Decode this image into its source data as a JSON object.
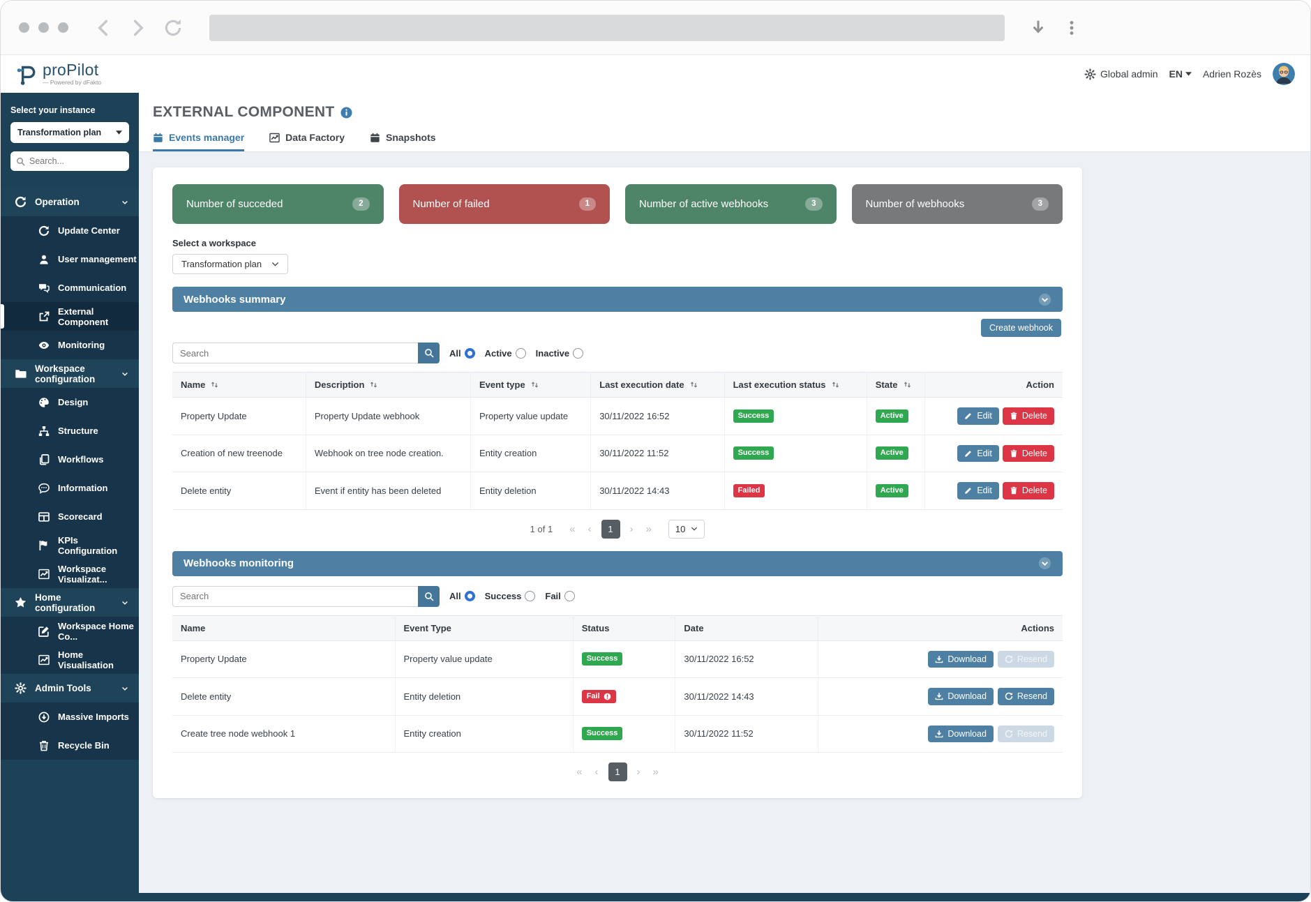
{
  "header": {
    "logo_title": "proPilot",
    "powered_by": "Powered by dFakto",
    "global_admin_label": "Global admin",
    "language": "EN",
    "user_name": "Adrien Rozès"
  },
  "sidebar": {
    "instance_label": "Select your instance",
    "instance_value": "Transformation plan",
    "search_placeholder": "Search...",
    "sections": [
      {
        "label": "Operation",
        "slug": "operation",
        "icon": "refresh",
        "items": [
          {
            "label": "Update Center",
            "slug": "update-center",
            "icon": "refresh"
          },
          {
            "label": "User management",
            "slug": "user-management",
            "icon": "user"
          },
          {
            "label": "Communication",
            "slug": "communication",
            "icon": "chat"
          },
          {
            "label": "External Component",
            "slug": "external-component",
            "icon": "external",
            "active": true
          },
          {
            "label": "Monitoring",
            "slug": "monitoring",
            "icon": "eye"
          }
        ]
      },
      {
        "label": "Workspace configuration",
        "slug": "workspace-configuration",
        "icon": "folder",
        "items": [
          {
            "label": "Design",
            "slug": "design",
            "icon": "palette"
          },
          {
            "label": "Structure",
            "slug": "structure",
            "icon": "sitemap"
          },
          {
            "label": "Workflows",
            "slug": "workflows",
            "icon": "copy"
          },
          {
            "label": "Information",
            "slug": "information",
            "icon": "comment"
          },
          {
            "label": "Scorecard",
            "slug": "scorecard",
            "icon": "table"
          },
          {
            "label": "KPIs Configuration",
            "slug": "kpis-configuration",
            "icon": "flag"
          },
          {
            "label": "Workspace Visualizat...",
            "slug": "workspace-visualization",
            "icon": "chart"
          }
        ]
      },
      {
        "label": "Home configuration",
        "slug": "home-configuration",
        "icon": "star",
        "items": [
          {
            "label": "Workspace Home Co...",
            "slug": "workspace-home-config",
            "icon": "edit"
          },
          {
            "label": "Home Visualisation",
            "slug": "home-visualisation",
            "icon": "chart"
          }
        ]
      },
      {
        "label": "Admin Tools",
        "slug": "admin-tools",
        "icon": "gear",
        "items": [
          {
            "label": "Massive Imports",
            "slug": "massive-imports",
            "icon": "import"
          },
          {
            "label": "Recycle Bin",
            "slug": "recycle-bin",
            "icon": "trash"
          }
        ]
      }
    ]
  },
  "page": {
    "title": "EXTERNAL COMPONENT",
    "tabs": [
      {
        "label": "Events manager",
        "slug": "events-manager",
        "icon": "calendar",
        "active": true
      },
      {
        "label": "Data Factory",
        "slug": "data-factory",
        "icon": "chart",
        "active": false
      },
      {
        "label": "Snapshots",
        "slug": "snapshots",
        "icon": "calendar",
        "active": false
      }
    ]
  },
  "stats": [
    {
      "label": "Number of succeded",
      "slug": "succeeded",
      "value": "2",
      "color": "#4e8468"
    },
    {
      "label": "Number of failed",
      "slug": "failed",
      "value": "1",
      "color": "#b15251"
    },
    {
      "label": "Number of active webhooks",
      "slug": "active-webhooks",
      "value": "3",
      "color": "#4e8468"
    },
    {
      "label": "Number of webhooks",
      "slug": "webhooks",
      "value": "3",
      "color": "#77797b"
    }
  ],
  "workspace": {
    "label": "Select a workspace",
    "value": "Transformation plan"
  },
  "summary": {
    "title": "Webhooks summary",
    "create_button_label": "Create webhook",
    "search_placeholder": "Search",
    "filters": [
      {
        "label": "All",
        "slug": "all",
        "checked": true
      },
      {
        "label": "Active",
        "slug": "active",
        "checked": false
      },
      {
        "label": "Inactive",
        "slug": "inactive",
        "checked": false
      }
    ],
    "columns": [
      {
        "label": "Name",
        "slug": "name",
        "sortable": true
      },
      {
        "label": "Description",
        "slug": "description",
        "sortable": true
      },
      {
        "label": "Event type",
        "slug": "event-type",
        "sortable": true
      },
      {
        "label": "Last execution date",
        "slug": "last-execution-date",
        "sortable": true
      },
      {
        "label": "Last execution status",
        "slug": "last-execution-status",
        "sortable": true
      },
      {
        "label": "State",
        "slug": "state",
        "sortable": true
      },
      {
        "label": "Action",
        "slug": "action",
        "sortable": false
      }
    ],
    "rows": [
      {
        "name": "Property Update",
        "description": "Property Update webhook",
        "event_type": "Property value update",
        "last_execution_date": "30/11/2022 16:52",
        "last_execution_status": "Success",
        "state": "Active"
      },
      {
        "name": "Creation of new treenode",
        "description": "Webhook on tree node creation.",
        "event_type": "Entity creation",
        "last_execution_date": "30/11/2022 11:52",
        "last_execution_status": "Success",
        "state": "Active"
      },
      {
        "name": "Delete entity",
        "description": "Event if entity has been deleted",
        "event_type": "Entity deletion",
        "last_execution_date": "30/11/2022 14:43",
        "last_execution_status": "Failed",
        "state": "Active"
      }
    ],
    "edit_label": "Edit",
    "delete_label": "Delete",
    "pagination": {
      "info": "1 of 1",
      "current_page": "1",
      "page_size": "10"
    }
  },
  "monitoring": {
    "title": "Webhooks monitoring",
    "search_placeholder": "Search",
    "filters": [
      {
        "label": "All",
        "slug": "all",
        "checked": true
      },
      {
        "label": "Success",
        "slug": "success",
        "checked": false
      },
      {
        "label": "Fail",
        "slug": "fail",
        "checked": false
      }
    ],
    "columns": [
      {
        "label": "Name",
        "slug": "name"
      },
      {
        "label": "Event Type",
        "slug": "event-type"
      },
      {
        "label": "Status",
        "slug": "status"
      },
      {
        "label": "Date",
        "slug": "date"
      },
      {
        "label": "Actions",
        "slug": "actions"
      }
    ],
    "rows": [
      {
        "name": "Property Update",
        "event_type": "Property value update",
        "status": "Success",
        "date": "30/11/2022 16:52",
        "resend_enabled": false
      },
      {
        "name": "Delete entity",
        "event_type": "Entity deletion",
        "status": "Fail",
        "date": "30/11/2022 14:43",
        "resend_enabled": true
      },
      {
        "name": "Create tree node webhook 1",
        "event_type": "Entity creation",
        "status": "Success",
        "date": "30/11/2022 11:52",
        "resend_enabled": false
      }
    ],
    "download_label": "Download",
    "resend_label": "Resend",
    "pagination": {
      "current_page": "1"
    }
  },
  "pager_glyphs": {
    "first": "«",
    "prev": "‹",
    "next": "›",
    "last": "»"
  },
  "colors": {
    "accent": "#4d80a3",
    "success": "#2fa84f",
    "fail": "#dc3545",
    "sidebar": "#1d4157"
  }
}
